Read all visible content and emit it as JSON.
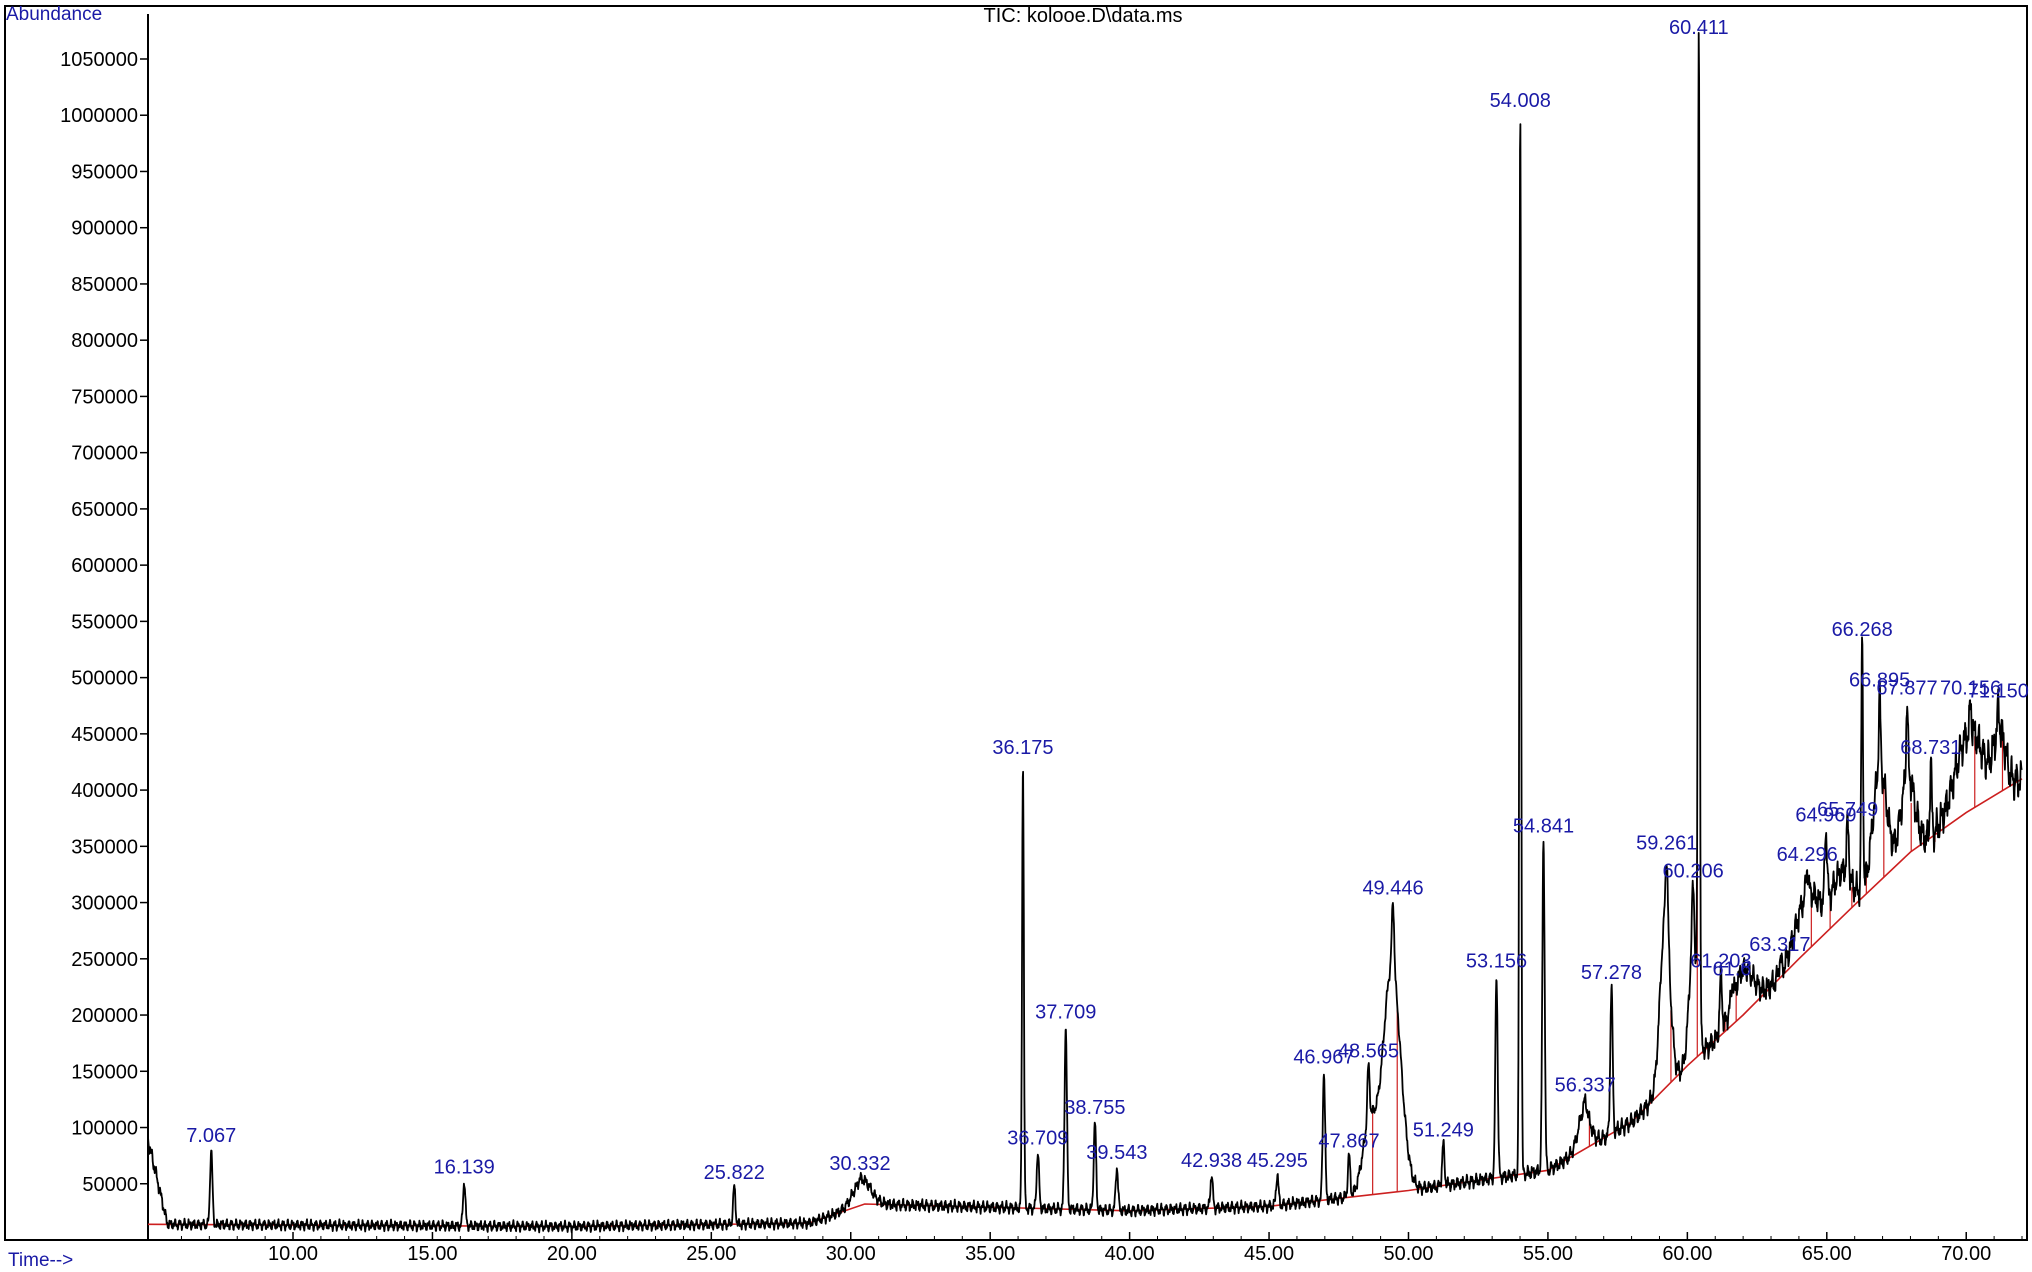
{
  "chart_data": {
    "type": "line",
    "title": "TIC: kolooe.D\\data.ms",
    "ylabel": "Abundance",
    "xlabel": "Time-->",
    "xlim": [
      4.8,
      72.0
    ],
    "ylim": [
      0,
      1090000
    ],
    "x_ticks": [
      10,
      15,
      20,
      25,
      30,
      35,
      40,
      45,
      50,
      55,
      60,
      65,
      70
    ],
    "x_tick_labels": [
      "10.00",
      "15.00",
      "20.00",
      "25.00",
      "30.00",
      "35.00",
      "40.00",
      "45.00",
      "50.00",
      "55.00",
      "60.00",
      "65.00",
      "70.00"
    ],
    "y_ticks": [
      50000,
      100000,
      150000,
      200000,
      250000,
      300000,
      350000,
      400000,
      450000,
      500000,
      550000,
      600000,
      650000,
      700000,
      750000,
      800000,
      850000,
      900000,
      950000,
      1000000,
      1050000
    ],
    "y_tick_labels": [
      "50000",
      "100000",
      "150000",
      "200000",
      "250000",
      "300000",
      "350000",
      "400000",
      "450000",
      "500000",
      "550000",
      "600000",
      "650000",
      "700000",
      "750000",
      "800000",
      "850000",
      "900000",
      "950000",
      "1000000",
      "1050000"
    ],
    "grid": false,
    "legend": "none",
    "colors": {
      "trace": "#000000",
      "baseline": "#cc1f1f",
      "labels": "#1a1aa6",
      "tick_text": "#000000"
    },
    "peaks": [
      {
        "label": "7.067",
        "rt": 7.067,
        "abundance": 80000
      },
      {
        "label": "16.139",
        "rt": 16.139,
        "abundance": 52000
      },
      {
        "label": "25.822",
        "rt": 25.822,
        "abundance": 47000
      },
      {
        "label": "30.332",
        "rt": 30.332,
        "abundance": 55000
      },
      {
        "label": "36.175",
        "rt": 36.175,
        "abundance": 425000
      },
      {
        "label": "36.709",
        "rt": 36.709,
        "abundance": 78000
      },
      {
        "label": "37.709",
        "rt": 37.709,
        "abundance": 190000
      },
      {
        "label": "38.755",
        "rt": 38.755,
        "abundance": 105000
      },
      {
        "label": "39.543",
        "rt": 39.543,
        "abundance": 65000
      },
      {
        "label": "42.938",
        "rt": 42.938,
        "abundance": 58000
      },
      {
        "label": "45.295",
        "rt": 45.295,
        "abundance": 58000
      },
      {
        "label": "46.967",
        "rt": 46.967,
        "abundance": 150000
      },
      {
        "label": "47.867",
        "rt": 47.867,
        "abundance": 75000
      },
      {
        "label": "48.565",
        "rt": 48.565,
        "abundance": 155000
      },
      {
        "label": "49.446",
        "rt": 49.446,
        "abundance": 300000
      },
      {
        "label": "51.249",
        "rt": 51.249,
        "abundance": 85000
      },
      {
        "label": "53.156",
        "rt": 53.156,
        "abundance": 235000
      },
      {
        "label": "54.008",
        "rt": 54.008,
        "abundance": 1000000
      },
      {
        "label": "54.841",
        "rt": 54.841,
        "abundance": 355000
      },
      {
        "label": "56.337",
        "rt": 56.337,
        "abundance": 125000
      },
      {
        "label": "57.278",
        "rt": 57.278,
        "abundance": 225000
      },
      {
        "label": "59.261",
        "rt": 59.261,
        "abundance": 340000
      },
      {
        "label": "60.206",
        "rt": 60.206,
        "abundance": 315000
      },
      {
        "label": "60.411",
        "rt": 60.411,
        "abundance": 1080000
      },
      {
        "label": "61.203",
        "rt": 61.203,
        "abundance": 235000
      },
      {
        "label": "61.6",
        "rt": 61.6,
        "abundance": 228000
      },
      {
        "label": "63.317",
        "rt": 63.317,
        "abundance": 250000
      },
      {
        "label": "64.296",
        "rt": 64.296,
        "abundance": 330000
      },
      {
        "label": "64.969",
        "rt": 64.969,
        "abundance": 365000
      },
      {
        "label": "65.749",
        "rt": 65.749,
        "abundance": 370000
      },
      {
        "label": "66.268",
        "rt": 66.268,
        "abundance": 530000
      },
      {
        "label": "66.895",
        "rt": 66.895,
        "abundance": 485000
      },
      {
        "label": "67.877",
        "rt": 67.877,
        "abundance": 478000
      },
      {
        "label": "68.731",
        "rt": 68.731,
        "abundance": 425000
      },
      {
        "label": "70.156",
        "rt": 70.156,
        "abundance": 478000
      },
      {
        "label": "71.150",
        "rt": 71.15,
        "abundance": 475000
      }
    ],
    "baseline_points": [
      [
        4.8,
        14000
      ],
      [
        20,
        12000
      ],
      [
        28.5,
        15000
      ],
      [
        30.5,
        32000
      ],
      [
        40,
        26000
      ],
      [
        45,
        30000
      ],
      [
        50,
        44000
      ],
      [
        55,
        62000
      ],
      [
        58,
        105000
      ],
      [
        60,
        155000
      ],
      [
        62,
        200000
      ],
      [
        64,
        250000
      ],
      [
        66,
        298000
      ],
      [
        68,
        345000
      ],
      [
        70,
        380000
      ],
      [
        72,
        410000
      ]
    ]
  }
}
